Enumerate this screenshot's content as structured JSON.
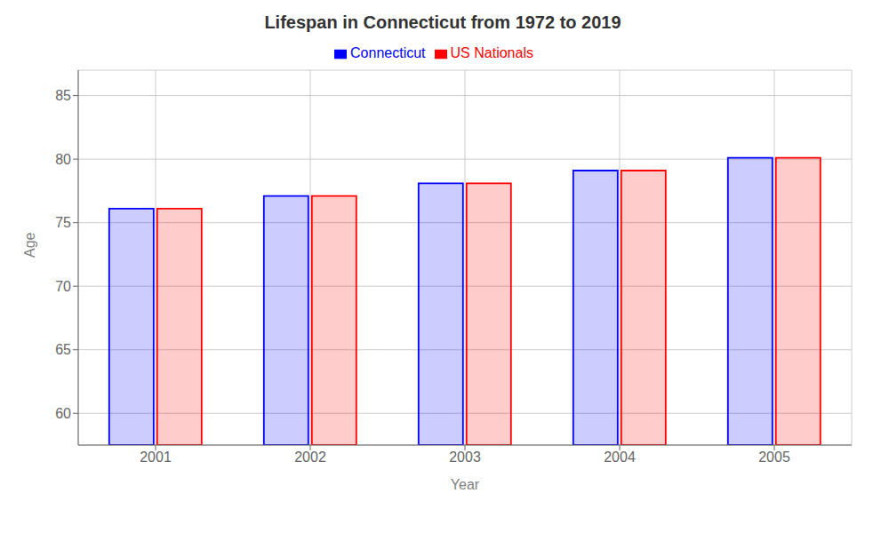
{
  "chart_data": {
    "type": "bar",
    "title": "Lifespan in Connecticut from 1972 to 2019",
    "x_label": "Year",
    "y_label": "Age",
    "categories": [
      "2001",
      "2002",
      "2003",
      "2004",
      "2005"
    ],
    "series": [
      {
        "name": "Connecticut",
        "color": "#0000ff",
        "values": [
          76.1,
          77.1,
          78.1,
          79.1,
          80.1
        ]
      },
      {
        "name": "US Nationals",
        "color": "#ff0000",
        "values": [
          76.1,
          77.1,
          78.1,
          79.1,
          80.1
        ]
      }
    ],
    "ylim": [
      57.5,
      87
    ],
    "yticks": [
      60,
      65,
      70,
      75,
      80,
      85
    ],
    "grid": true,
    "legend": "top"
  }
}
